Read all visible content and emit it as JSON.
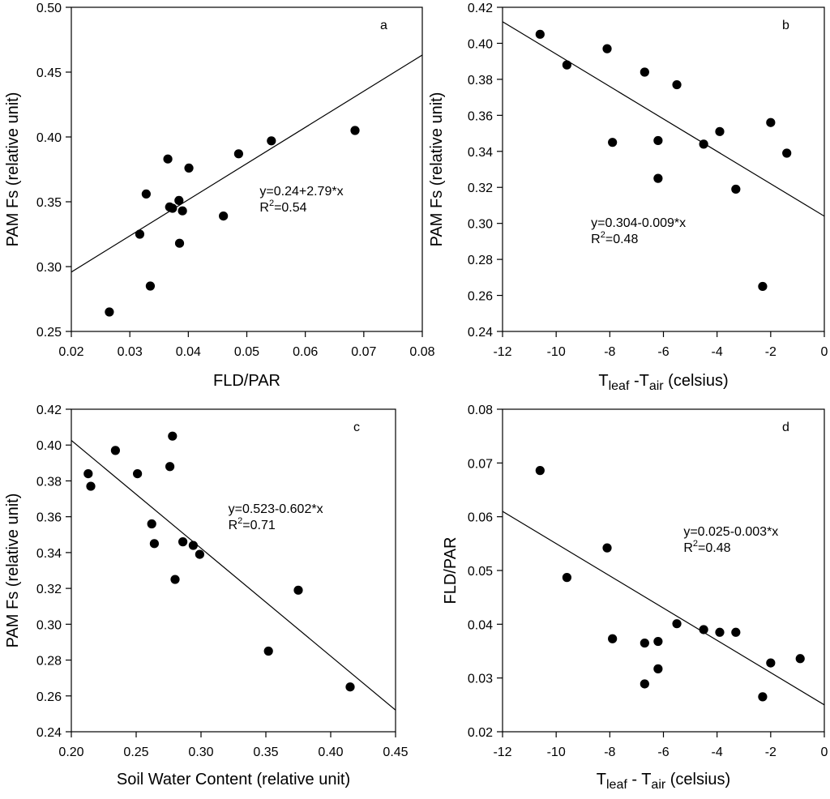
{
  "chart_data": [
    {
      "type": "scatter",
      "panel_label": "a",
      "xlabel": "FLD/PAR",
      "ylabel": "PAM Fs (relative unit)",
      "xlim": [
        0.02,
        0.08
      ],
      "ylim": [
        0.25,
        0.5
      ],
      "xticks": [
        0.02,
        0.03,
        0.04,
        0.05,
        0.06,
        0.07,
        0.08
      ],
      "yticks": [
        0.25,
        0.3,
        0.35,
        0.4,
        0.45,
        0.5
      ],
      "xtick_labels": [
        "0.02",
        "0.03",
        "0.04",
        "0.05",
        "0.06",
        "0.07",
        "0.08"
      ],
      "ytick_labels": [
        "0.25",
        "0.30",
        "0.35",
        "0.40",
        "0.45",
        "0.50"
      ],
      "points": [
        [
          0.0265,
          0.265
        ],
        [
          0.0317,
          0.325
        ],
        [
          0.0328,
          0.356
        ],
        [
          0.0335,
          0.285
        ],
        [
          0.0365,
          0.383
        ],
        [
          0.0368,
          0.346
        ],
        [
          0.0373,
          0.345
        ],
        [
          0.0384,
          0.351
        ],
        [
          0.0385,
          0.318
        ],
        [
          0.039,
          0.343
        ],
        [
          0.0401,
          0.376
        ],
        [
          0.046,
          0.339
        ],
        [
          0.0486,
          0.387
        ],
        [
          0.0542,
          0.397
        ],
        [
          0.0685,
          0.405
        ]
      ],
      "fit": {
        "intercept": 0.24,
        "slope": 2.79,
        "x_range": [
          0.02,
          0.08
        ]
      },
      "equation": "y=0.24+2.79*x",
      "r2_prefix": "R",
      "r2_sup": "2",
      "r2_value": "=0.54",
      "eq_pos": [
        0.0522,
        0.355
      ]
    },
    {
      "type": "scatter",
      "panel_label": "b",
      "xlabel": {
        "main1": "T",
        "sub1": "leaf",
        "mid": " -T",
        "sub2": "air",
        "tail": " (celsius)"
      },
      "ylabel": "PAM Fs (relative unit)",
      "xlim": [
        -12,
        0
      ],
      "ylim": [
        0.24,
        0.42
      ],
      "xticks": [
        -12,
        -10,
        -8,
        -6,
        -4,
        -2,
        0
      ],
      "yticks": [
        0.24,
        0.26,
        0.28,
        0.3,
        0.32,
        0.34,
        0.36,
        0.38,
        0.4,
        0.42
      ],
      "xtick_labels": [
        "-12",
        "-10",
        "-8",
        "-6",
        "-4",
        "-2",
        "0"
      ],
      "ytick_labels": [
        "0.24",
        "0.26",
        "0.28",
        "0.30",
        "0.32",
        "0.34",
        "0.36",
        "0.38",
        "0.40",
        "0.42"
      ],
      "points": [
        [
          -10.6,
          0.405
        ],
        [
          -9.6,
          0.388
        ],
        [
          -8.1,
          0.397
        ],
        [
          -7.9,
          0.345
        ],
        [
          -6.7,
          0.384
        ],
        [
          -6.2,
          0.346
        ],
        [
          -6.2,
          0.325
        ],
        [
          -5.5,
          0.377
        ],
        [
          -4.5,
          0.344
        ],
        [
          -3.9,
          0.351
        ],
        [
          -3.3,
          0.319
        ],
        [
          -2.3,
          0.265
        ],
        [
          -2.0,
          0.356
        ],
        [
          -1.4,
          0.339
        ]
      ],
      "fit": {
        "intercept": 0.304,
        "slope": -0.009,
        "x_range": [
          -12,
          0
        ]
      },
      "equation": "y=0.304-0.009*x",
      "r2_prefix": "R",
      "r2_sup": "2",
      "r2_value": "=0.48",
      "eq_pos": [
        -8.7,
        0.298
      ]
    },
    {
      "type": "scatter",
      "panel_label": "c",
      "xlabel": "Soil Water Content (relative unit)",
      "ylabel": "PAM Fs (relative unit)",
      "xlim": [
        0.2,
        0.45
      ],
      "ylim": [
        0.24,
        0.42
      ],
      "xticks": [
        0.2,
        0.25,
        0.3,
        0.35,
        0.4,
        0.45
      ],
      "yticks": [
        0.24,
        0.26,
        0.28,
        0.3,
        0.32,
        0.34,
        0.36,
        0.38,
        0.4,
        0.42
      ],
      "xtick_labels": [
        "0.20",
        "0.25",
        "0.30",
        "0.35",
        "0.40",
        "0.45"
      ],
      "ytick_labels": [
        "0.24",
        "0.26",
        "0.28",
        "0.30",
        "0.32",
        "0.34",
        "0.36",
        "0.38",
        "0.40",
        "0.42"
      ],
      "points": [
        [
          0.213,
          0.384
        ],
        [
          0.215,
          0.377
        ],
        [
          0.234,
          0.397
        ],
        [
          0.251,
          0.384
        ],
        [
          0.262,
          0.356
        ],
        [
          0.264,
          0.345
        ],
        [
          0.276,
          0.388
        ],
        [
          0.278,
          0.405
        ],
        [
          0.28,
          0.325
        ],
        [
          0.286,
          0.346
        ],
        [
          0.294,
          0.344
        ],
        [
          0.299,
          0.339
        ],
        [
          0.352,
          0.285
        ],
        [
          0.375,
          0.319
        ],
        [
          0.415,
          0.265
        ]
      ],
      "fit": {
        "intercept": 0.523,
        "slope": -0.602,
        "x_range": [
          0.2,
          0.45
        ]
      },
      "equation": "y=0.523-0.602*x",
      "r2_prefix": "R",
      "r2_sup": "2",
      "r2_value": "=0.71",
      "eq_pos": [
        0.321,
        0.362
      ]
    },
    {
      "type": "scatter",
      "panel_label": "d",
      "xlabel": {
        "main1": "T",
        "sub1": "leaf",
        "mid": " - T",
        "sub2": "air",
        "tail": " (celsius)"
      },
      "ylabel": "FLD/PAR",
      "xlim": [
        -12,
        0
      ],
      "ylim": [
        0.02,
        0.08
      ],
      "xticks": [
        -12,
        -10,
        -8,
        -6,
        -4,
        -2,
        0
      ],
      "yticks": [
        0.02,
        0.03,
        0.04,
        0.05,
        0.06,
        0.07,
        0.08
      ],
      "xtick_labels": [
        "-12",
        "-10",
        "-8",
        "-6",
        "-4",
        "-2",
        "0"
      ],
      "ytick_labels": [
        "0.02",
        "0.03",
        "0.04",
        "0.05",
        "0.06",
        "0.07",
        "0.08"
      ],
      "points": [
        [
          -10.6,
          0.0686
        ],
        [
          -9.6,
          0.0487
        ],
        [
          -8.1,
          0.0542
        ],
        [
          -7.9,
          0.0373
        ],
        [
          -6.7,
          0.0365
        ],
        [
          -6.7,
          0.0289
        ],
        [
          -6.2,
          0.0368
        ],
        [
          -6.2,
          0.0317
        ],
        [
          -5.5,
          0.0401
        ],
        [
          -4.5,
          0.039
        ],
        [
          -3.9,
          0.0385
        ],
        [
          -3.3,
          0.0385
        ],
        [
          -2.3,
          0.0265
        ],
        [
          -2.0,
          0.0328
        ],
        [
          -0.9,
          0.0336
        ]
      ],
      "fit": {
        "intercept": 0.025,
        "slope": -0.003,
        "x_range": [
          -12,
          0
        ]
      },
      "equation": "y=0.025-0.003*x",
      "r2_prefix": "R",
      "r2_sup": "2",
      "r2_value": "=0.48",
      "eq_pos": [
        -5.25,
        0.0565
      ]
    }
  ]
}
